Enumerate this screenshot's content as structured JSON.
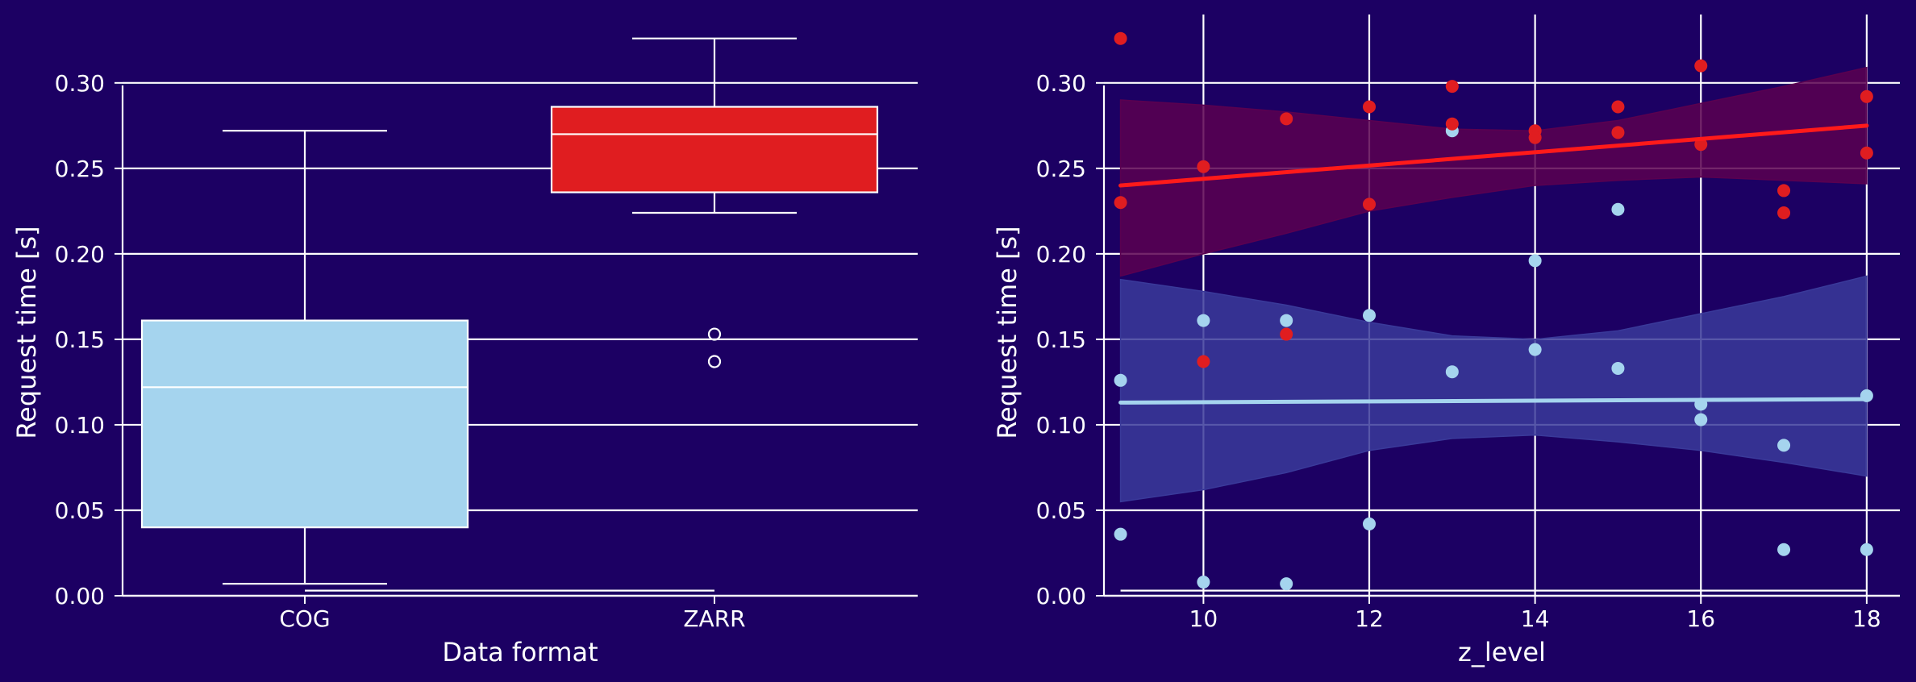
{
  "theme": {
    "background": "#1c0063",
    "grid": "#ffffff",
    "cog_color": "#a5d4ee",
    "zarr_color": "#e01d20",
    "cog_band": "#3a3a9a",
    "zarr_band": "#5a0050"
  },
  "chart_data": [
    {
      "type": "box",
      "xlabel": "Data format",
      "ylabel": "Request time [s]",
      "categories": [
        "COG",
        "ZARR"
      ],
      "ylim": [
        0.0,
        0.34
      ],
      "yticks": [
        "0.00",
        "0.05",
        "0.10",
        "0.15",
        "0.20",
        "0.25",
        "0.30"
      ],
      "grid": "horizontal",
      "boxes": [
        {
          "name": "COG",
          "whisker_low": 0.007,
          "q1": 0.04,
          "median": 0.122,
          "q3": 0.161,
          "whisker_high": 0.272,
          "outliers": []
        },
        {
          "name": "ZARR",
          "whisker_low": 0.224,
          "q1": 0.236,
          "median": 0.27,
          "q3": 0.286,
          "whisker_high": 0.326,
          "outliers": [
            0.137,
            0.153
          ]
        }
      ]
    },
    {
      "type": "scatter",
      "xlabel": "z_level",
      "ylabel": "Request time [s]",
      "xlim": [
        8.8,
        18.4
      ],
      "ylim": [
        0.0,
        0.34
      ],
      "xticks": [
        "10",
        "12",
        "14",
        "16",
        "18"
      ],
      "yticks": [
        "0.00",
        "0.05",
        "0.10",
        "0.15",
        "0.20",
        "0.25",
        "0.30"
      ],
      "grid": "both",
      "series": [
        {
          "key": "cog",
          "points": [
            [
              9,
              0.126
            ],
            [
              9,
              0.036
            ],
            [
              10,
              0.161
            ],
            [
              10,
              0.008
            ],
            [
              11,
              0.161
            ],
            [
              11,
              0.007
            ],
            [
              12,
              0.164
            ],
            [
              12,
              0.042
            ],
            [
              13,
              0.272
            ],
            [
              13,
              0.131
            ],
            [
              14,
              0.196
            ],
            [
              14,
              0.144
            ],
            [
              15,
              0.226
            ],
            [
              15,
              0.133
            ],
            [
              16,
              0.112
            ],
            [
              16,
              0.103
            ],
            [
              17,
              0.088
            ],
            [
              17,
              0.027
            ],
            [
              18,
              0.117
            ],
            [
              18,
              0.027
            ]
          ],
          "fit": [
            [
              9,
              0.113
            ],
            [
              18,
              0.115
            ]
          ],
          "ci_upper": [
            [
              9,
              0.185
            ],
            [
              10,
              0.178
            ],
            [
              11,
              0.17
            ],
            [
              12,
              0.16
            ],
            [
              13,
              0.152
            ],
            [
              14,
              0.15
            ],
            [
              15,
              0.155
            ],
            [
              16,
              0.165
            ],
            [
              17,
              0.175
            ],
            [
              18,
              0.187
            ]
          ],
          "ci_lower": [
            [
              9,
              0.055
            ],
            [
              10,
              0.062
            ],
            [
              11,
              0.072
            ],
            [
              12,
              0.085
            ],
            [
              13,
              0.092
            ],
            [
              14,
              0.094
            ],
            [
              15,
              0.09
            ],
            [
              16,
              0.085
            ],
            [
              17,
              0.078
            ],
            [
              18,
              0.07
            ]
          ]
        },
        {
          "key": "zarr",
          "points": [
            [
              9,
              0.326
            ],
            [
              9,
              0.23
            ],
            [
              10,
              0.251
            ],
            [
              10,
              0.137
            ],
            [
              11,
              0.279
            ],
            [
              11,
              0.153
            ],
            [
              12,
              0.286
            ],
            [
              12,
              0.229
            ],
            [
              13,
              0.298
            ],
            [
              13,
              0.276
            ],
            [
              14,
              0.272
            ],
            [
              14,
              0.268
            ],
            [
              15,
              0.286
            ],
            [
              15,
              0.271
            ],
            [
              16,
              0.31
            ],
            [
              16,
              0.264
            ],
            [
              17,
              0.237
            ],
            [
              17,
              0.224
            ],
            [
              18,
              0.292
            ],
            [
              18,
              0.259
            ]
          ],
          "fit": [
            [
              9,
              0.24
            ],
            [
              18,
              0.275
            ]
          ],
          "ci_upper": [
            [
              9,
              0.29
            ],
            [
              10,
              0.287
            ],
            [
              11,
              0.283
            ],
            [
              12,
              0.278
            ],
            [
              13,
              0.273
            ],
            [
              14,
              0.272
            ],
            [
              15,
              0.278
            ],
            [
              16,
              0.288
            ],
            [
              17,
              0.298
            ],
            [
              18,
              0.309
            ]
          ],
          "ci_lower": [
            [
              9,
              0.187
            ],
            [
              10,
              0.2
            ],
            [
              11,
              0.212
            ],
            [
              12,
              0.225
            ],
            [
              13,
              0.233
            ],
            [
              14,
              0.24
            ],
            [
              15,
              0.243
            ],
            [
              16,
              0.245
            ],
            [
              17,
              0.243
            ],
            [
              18,
              0.241
            ]
          ]
        }
      ]
    }
  ]
}
